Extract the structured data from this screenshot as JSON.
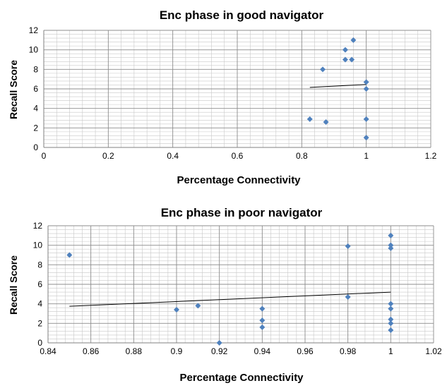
{
  "chart_data": [
    {
      "type": "scatter",
      "title": "Enc phase in good navigator",
      "xlabel": "Percentage Connectivity",
      "ylabel": "Recall Score",
      "xlim": [
        0,
        1.2
      ],
      "ylim": [
        0,
        12
      ],
      "xticks": [
        0,
        0.2,
        0.4,
        0.6,
        0.8,
        1,
        1.2
      ],
      "xtick_labels": [
        "0",
        "0.2",
        "0.4",
        "0.6",
        "0.8",
        "1",
        "1.2"
      ],
      "yticks": [
        0,
        2,
        4,
        6,
        8,
        10,
        12
      ],
      "ytick_labels": [
        "0",
        "2",
        "4",
        "6",
        "8",
        "10",
        "12"
      ],
      "grid": true,
      "marker_color": "#4F81BD",
      "points": [
        {
          "x": 0.96,
          "y": 11
        },
        {
          "x": 0.935,
          "y": 10
        },
        {
          "x": 0.935,
          "y": 9
        },
        {
          "x": 0.955,
          "y": 9
        },
        {
          "x": 0.865,
          "y": 8
        },
        {
          "x": 1.0,
          "y": 6.7
        },
        {
          "x": 1.0,
          "y": 6
        },
        {
          "x": 0.825,
          "y": 2.9
        },
        {
          "x": 0.875,
          "y": 2.6
        },
        {
          "x": 1.0,
          "y": 2.9
        },
        {
          "x": 1.0,
          "y": 1
        }
      ],
      "trendline": {
        "x": [
          0.825,
          1.0
        ],
        "y": [
          6.15,
          6.45
        ]
      }
    },
    {
      "type": "scatter",
      "title": "Enc phase in poor navigator",
      "xlabel": "Percentage Connectivity",
      "ylabel": "Recall Score",
      "xlim": [
        0.84,
        1.02
      ],
      "ylim": [
        0,
        12
      ],
      "xticks": [
        0.84,
        0.86,
        0.88,
        0.9,
        0.92,
        0.94,
        0.96,
        0.98,
        1,
        1.02
      ],
      "xtick_labels": [
        "0.84",
        "0.86",
        "0.88",
        "0.9",
        "0.92",
        "0.94",
        "0.96",
        "0.98",
        "1",
        "1.02"
      ],
      "yticks": [
        0,
        2,
        4,
        6,
        8,
        10,
        12
      ],
      "ytick_labels": [
        "0",
        "2",
        "4",
        "6",
        "8",
        "10",
        "12"
      ],
      "grid": true,
      "marker_color": "#4F81BD",
      "points": [
        {
          "x": 0.85,
          "y": 9
        },
        {
          "x": 0.9,
          "y": 3.4
        },
        {
          "x": 0.91,
          "y": 3.8
        },
        {
          "x": 0.92,
          "y": 0
        },
        {
          "x": 0.94,
          "y": 3.5
        },
        {
          "x": 0.94,
          "y": 2.3
        },
        {
          "x": 0.94,
          "y": 1.6
        },
        {
          "x": 0.98,
          "y": 9.9
        },
        {
          "x": 0.98,
          "y": 4.7
        },
        {
          "x": 1.0,
          "y": 11
        },
        {
          "x": 1.0,
          "y": 10
        },
        {
          "x": 1.0,
          "y": 9.7
        },
        {
          "x": 1.0,
          "y": 4
        },
        {
          "x": 1.0,
          "y": 3.5
        },
        {
          "x": 1.0,
          "y": 2.4
        },
        {
          "x": 1.0,
          "y": 2
        },
        {
          "x": 1.0,
          "y": 1.3
        }
      ],
      "trendline": {
        "x": [
          0.85,
          1.0
        ],
        "y": [
          3.75,
          5.2
        ]
      }
    }
  ]
}
